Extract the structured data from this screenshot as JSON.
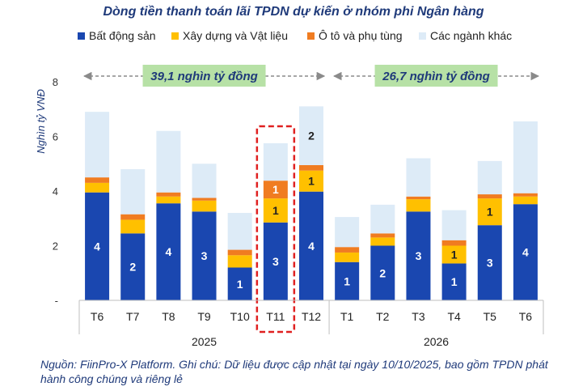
{
  "chart_data": {
    "type": "bar",
    "stacked": true,
    "title": "Dòng tiền thanh toán lãi TPDN dự kiến ở nhóm phi Ngân hàng",
    "ylabel": "Nghìn tỷ VNĐ",
    "ylim": [
      0,
      8
    ],
    "yticks": [
      "-",
      "2",
      "4",
      "6",
      "8"
    ],
    "categories": [
      "T6",
      "T7",
      "T8",
      "T9",
      "T10",
      "T11",
      "T12",
      "T1",
      "T2",
      "T3",
      "T4",
      "T5",
      "T6"
    ],
    "years": [
      {
        "label": "2025",
        "start": 0,
        "end": 6
      },
      {
        "label": "2026",
        "start": 7,
        "end": 12
      }
    ],
    "highlight_index": 5,
    "series": [
      {
        "name": "Bất động sản",
        "color": "#1a47b0",
        "values": [
          3.95,
          2.45,
          3.55,
          3.25,
          1.2,
          2.85,
          3.98,
          1.4,
          2.0,
          3.25,
          1.35,
          2.75,
          3.52
        ]
      },
      {
        "name": "Xây dựng và Vật liệu",
        "color": "#ffc000",
        "values": [
          0.35,
          0.5,
          0.25,
          0.4,
          0.45,
          0.88,
          0.77,
          0.35,
          0.3,
          0.45,
          0.65,
          0.98,
          0.28
        ]
      },
      {
        "name": "Ô tô và phụ tùng",
        "color": "#f07c21",
        "values": [
          0.2,
          0.2,
          0.15,
          0.1,
          0.2,
          0.65,
          0.2,
          0.2,
          0.15,
          0.1,
          0.2,
          0.15,
          0.12
        ]
      },
      {
        "name": "Các ngành khác",
        "color": "#ddebf7",
        "values": [
          2.4,
          1.65,
          2.25,
          1.25,
          1.35,
          1.37,
          2.15,
          1.1,
          1.05,
          1.4,
          1.1,
          1.22,
          2.63
        ]
      }
    ],
    "data_labels": [
      [
        "4",
        "",
        "",
        ""
      ],
      [
        "2",
        "",
        "",
        ""
      ],
      [
        "4",
        "",
        "",
        ""
      ],
      [
        "3",
        "",
        "",
        ""
      ],
      [
        "1",
        "",
        "",
        ""
      ],
      [
        "3",
        "1",
        "1",
        ""
      ],
      [
        "4",
        "1",
        "",
        "2"
      ],
      [
        "1",
        "",
        "",
        ""
      ],
      [
        "2",
        "",
        "",
        ""
      ],
      [
        "3",
        "",
        "",
        ""
      ],
      [
        "1",
        "1",
        "",
        ""
      ],
      [
        "3",
        "1",
        "",
        ""
      ],
      [
        "4",
        "",
        "",
        ""
      ]
    ],
    "annotations": [
      {
        "text": "39,1 nghìn tỷ đồng",
        "from": 0,
        "to": 6
      },
      {
        "text": "26,7 nghìn tỷ đồng",
        "from": 7,
        "to": 12
      }
    ]
  },
  "note": "Nguồn: FiinPro-X Platform. Ghi chú: Dữ liệu được cập nhật tại ngày 10/10/2025, bao gồm TPDN phát hành công chúng và riêng lẻ"
}
